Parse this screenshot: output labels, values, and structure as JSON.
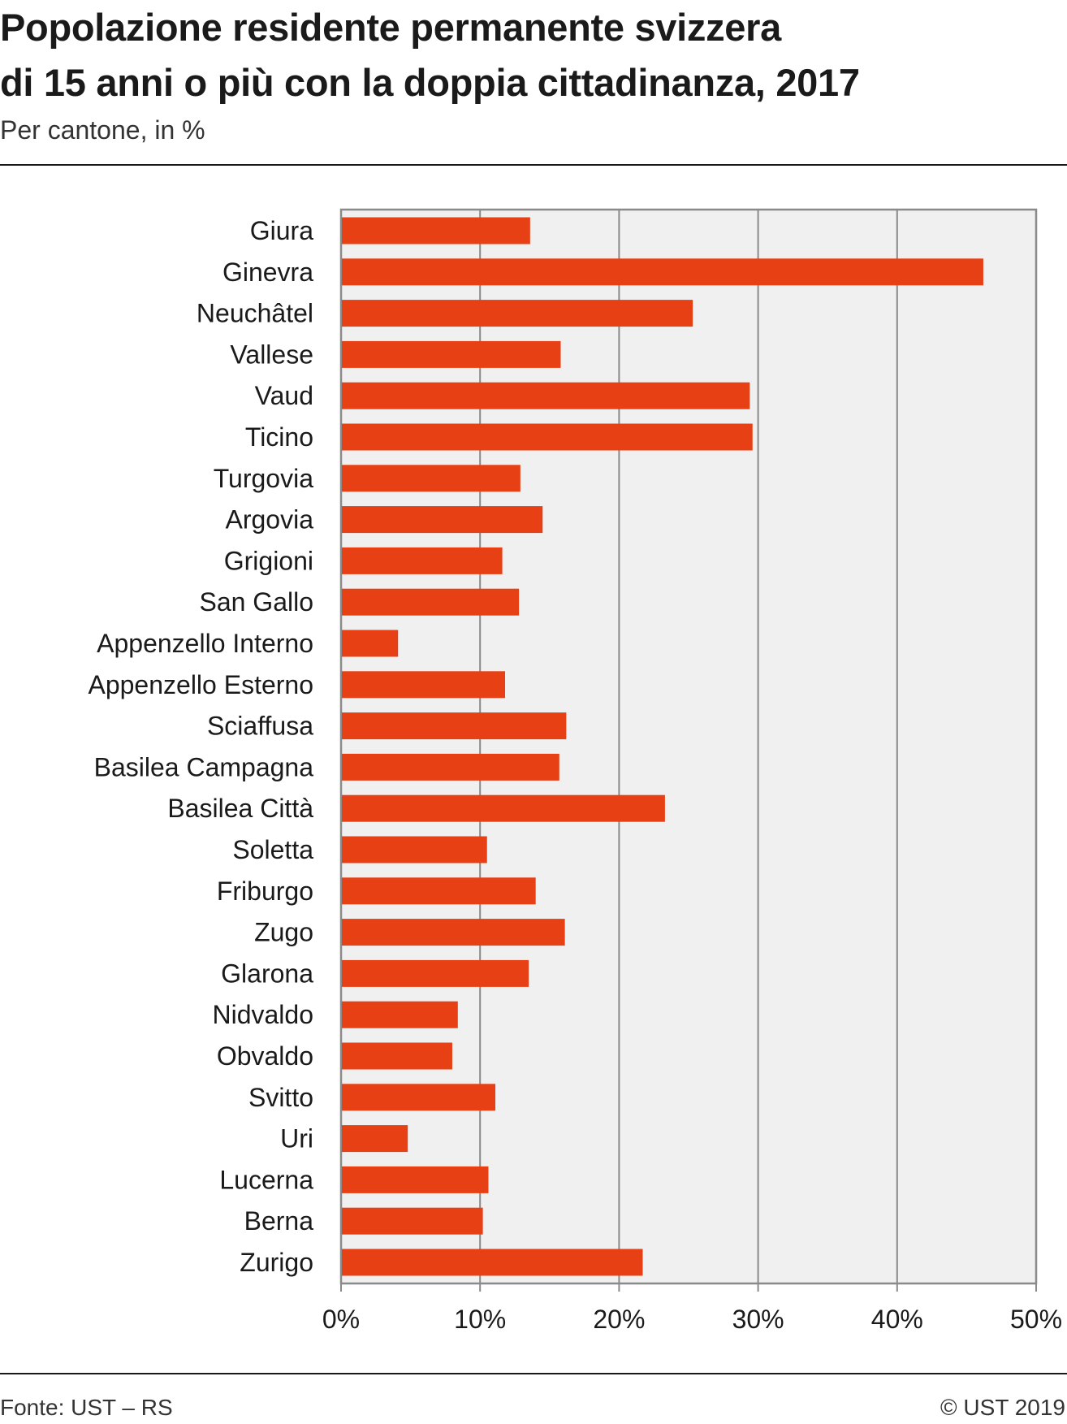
{
  "header": {
    "title_line1": "Popolazione residente permanente svizzera",
    "title_line2": "di 15 anni o più con la doppia cittadinanza, 2017",
    "subtitle": "Per cantone, in %"
  },
  "footer": {
    "source": "Fonte: UST – RS",
    "copyright": "© UST 2019"
  },
  "colors": {
    "bar": "#e84015",
    "plot_background": "#f0f0f0",
    "grid": "#8a8a8a"
  },
  "chart_data": {
    "type": "bar",
    "orientation": "horizontal",
    "categories": [
      "Giura",
      "Ginevra",
      "Neuchâtel",
      "Vallese",
      "Vaud",
      "Ticino",
      "Turgovia",
      "Argovia",
      "Grigioni",
      "San Gallo",
      "Appenzello Interno",
      "Appenzello Esterno",
      "Sciaffusa",
      "Basilea Campagna",
      "Basilea Città",
      "Soletta",
      "Friburgo",
      "Zugo",
      "Glarona",
      "Nidvaldo",
      "Obvaldo",
      "Svitto",
      "Uri",
      "Lucerna",
      "Berna",
      "Zurigo"
    ],
    "values": [
      13.6,
      46.2,
      25.3,
      15.8,
      29.4,
      29.6,
      12.9,
      14.5,
      11.6,
      12.8,
      4.1,
      11.8,
      16.2,
      15.7,
      23.3,
      10.5,
      14.0,
      16.1,
      13.5,
      8.4,
      8.0,
      11.1,
      4.8,
      10.6,
      10.2,
      21.7
    ],
    "xlim": [
      0,
      50
    ],
    "xticks": [
      0,
      10,
      20,
      30,
      40,
      50
    ],
    "xtick_labels": [
      "0%",
      "10%",
      "20%",
      "30%",
      "40%",
      "50%"
    ],
    "grid": "vertical",
    "legend": "none"
  }
}
